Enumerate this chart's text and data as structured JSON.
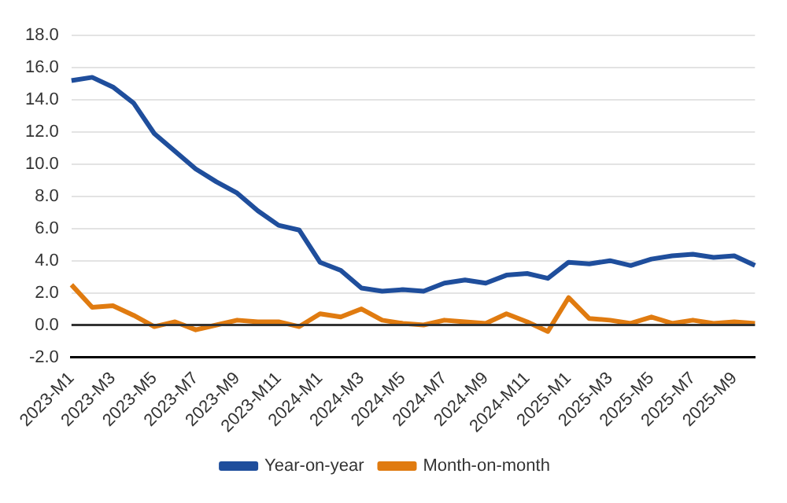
{
  "chart_data": {
    "type": "line",
    "categories": [
      "2023-M1",
      null,
      "2023-M3",
      null,
      "2023-M5",
      null,
      "2023-M7",
      null,
      "2023-M9",
      null,
      "2023-M11",
      null,
      "2024-M1",
      null,
      "2024-M3",
      null,
      "2024-M5",
      null,
      "2024-M7",
      null,
      "2024-M9",
      null,
      "2024-M11",
      null,
      "2025-M1",
      null,
      "2025-M3",
      null,
      "2025-M5",
      null,
      "2025-M7",
      null,
      "2025-M9",
      null
    ],
    "series": [
      {
        "name": "Year-on-year",
        "color": "#1f4e9c",
        "values": [
          15.2,
          15.4,
          14.8,
          13.8,
          11.9,
          10.8,
          9.7,
          8.9,
          8.2,
          7.1,
          6.2,
          5.9,
          3.9,
          3.4,
          2.3,
          2.1,
          2.2,
          2.1,
          2.6,
          2.8,
          2.6,
          3.1,
          3.2,
          2.9,
          3.9,
          3.8,
          4.0,
          3.7,
          4.1,
          4.3,
          4.4,
          4.2,
          4.3,
          3.7
        ]
      },
      {
        "name": "Month-on-month",
        "color": "#e07b10",
        "values": [
          2.5,
          1.1,
          1.2,
          0.6,
          -0.1,
          0.2,
          -0.3,
          0.0,
          0.3,
          0.2,
          0.2,
          -0.1,
          0.7,
          0.5,
          1.0,
          0.3,
          0.1,
          0.0,
          0.3,
          0.2,
          0.1,
          0.7,
          0.2,
          -0.4,
          1.7,
          0.4,
          0.3,
          0.1,
          0.5,
          0.1,
          0.3,
          0.1,
          0.2,
          0.1
        ]
      }
    ],
    "ylim": [
      -2,
      18
    ],
    "yticks": [
      {
        "value": -2,
        "label": "-2.0"
      },
      {
        "value": 0,
        "label": "0.0"
      },
      {
        "value": 2,
        "label": "2.0"
      },
      {
        "value": 4,
        "label": "4.0"
      },
      {
        "value": 6,
        "label": "6.0"
      },
      {
        "value": 8,
        "label": "8.0"
      },
      {
        "value": 10,
        "label": "10.0"
      },
      {
        "value": 12,
        "label": "12.0"
      },
      {
        "value": 14,
        "label": "14.0"
      },
      {
        "value": 16,
        "label": "16.0"
      },
      {
        "value": 18,
        "label": "18.0"
      }
    ],
    "grid": "y",
    "legend": "bottom",
    "marker": "none",
    "line_style": "solid",
    "ref_lines": [
      {
        "axis": "y",
        "value": 0,
        "color": "#333333"
      }
    ]
  }
}
